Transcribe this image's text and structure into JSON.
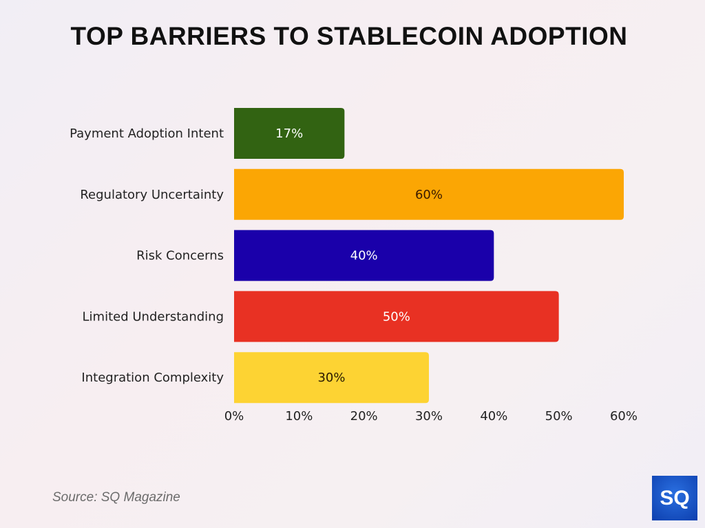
{
  "chart_data": {
    "type": "bar",
    "orientation": "horizontal",
    "title": "TOP BARRIERS TO STABLECOIN ADOPTION",
    "categories": [
      "Payment Adoption Intent",
      "Regulatory Uncertainty",
      "Risk Concerns",
      "Limited Understanding",
      "Integration Complexity"
    ],
    "values": [
      17,
      60,
      40,
      50,
      30
    ],
    "data_labels": [
      "17%",
      "60%",
      "40%",
      "50%",
      "30%"
    ],
    "colors": [
      "#326312",
      "#fba604",
      "#1a00aa",
      "#e83123",
      "#fdd333"
    ],
    "label_colors": [
      "#ffffff",
      "#3a1a00",
      "#ffffff",
      "#ffffff",
      "#2a1a00"
    ],
    "xlim": [
      0,
      60
    ],
    "xticks": [
      "0%",
      "10%",
      "20%",
      "30%",
      "40%",
      "50%",
      "60%"
    ],
    "xtick_values": [
      0,
      10,
      20,
      30,
      40,
      50,
      60
    ],
    "grid": false,
    "legend": "none"
  },
  "source": "Source: SQ Magazine",
  "logo": "SQ"
}
